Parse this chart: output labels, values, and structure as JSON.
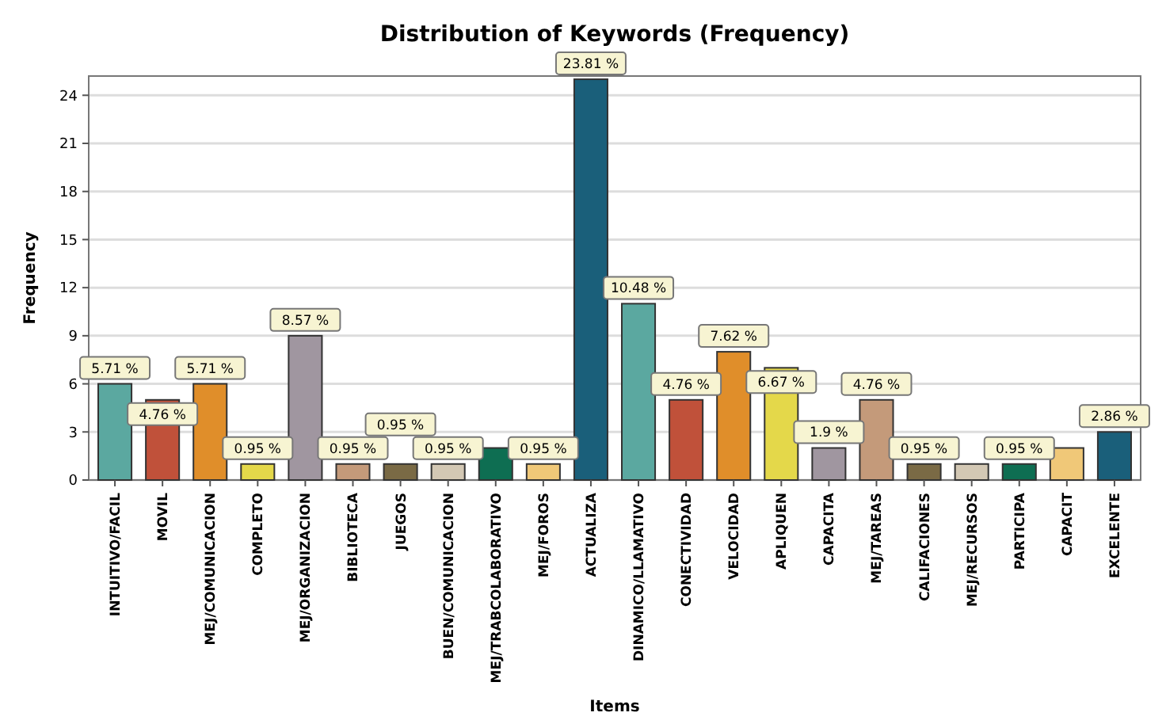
{
  "chart_data": {
    "type": "bar",
    "title": "Distribution of Keywords (Frequency)",
    "xlabel": "Items",
    "ylabel": "Frequency",
    "categories": [
      "INTUITIVO/FACIL",
      "MOVIL",
      "MEJ/COMUNICACION",
      "COMPLETO",
      "MEJ/ORGANIZACION",
      "BIBLIOTECA",
      "JUEGOS",
      "BUEN/COMUNICACION",
      "MEJ/TRABCOLABORATIVO",
      "MEJ/FOROS",
      "ACTUALIZA",
      "DINAMICO/LLAMATIVO",
      "CONECTIVIDAD",
      "VELOCIDAD",
      "APLIQUEN",
      "CAPACITA",
      "MEJ/TAREAS",
      "CALIFACIONES",
      "MEJ/RECURSOS",
      "PARTICIPA",
      "CAPACIT",
      "EXCELENTE"
    ],
    "values": [
      6,
      5,
      6,
      1,
      9,
      1,
      1,
      1,
      2,
      1,
      25,
      11,
      5,
      8,
      7,
      2,
      5,
      1,
      1,
      1,
      2,
      3
    ],
    "colors": [
      "#5ba8a0",
      "#c0513a",
      "#e08e2a",
      "#e4d84a",
      "#a096a0",
      "#c49a7a",
      "#7a6a45",
      "#d3c8b4",
      "#0e6e52",
      "#f0c878",
      "#1a5f7a",
      "#5ba8a0",
      "#c0513a",
      "#e08e2a",
      "#e4d84a",
      "#a096a0",
      "#c49a7a",
      "#7a6a45",
      "#d3c8b4",
      "#0e6e52",
      "#f0c878",
      "#1a5f7a"
    ],
    "annotations": [
      {
        "text": "5.71 %",
        "x": "INTUITIVO/FACIL",
        "y": 6
      },
      {
        "text": "4.76 %",
        "x": "MOVIL",
        "y": 5
      },
      {
        "text": "5.71 %",
        "x": "MEJ/COMUNICACION",
        "y": 6
      },
      {
        "text": "0.95 %",
        "x": "COMPLETO",
        "y": 1
      },
      {
        "text": "8.57 %",
        "x": "MEJ/ORGANIZACION",
        "y": 9
      },
      {
        "text": "0.95 %",
        "x": "BIBLIOTECA",
        "y": 1
      },
      {
        "text": "0.95 %",
        "x": "JUEGOS",
        "y": 1
      },
      {
        "text": "0.95 %",
        "x": "BUEN/COMUNICACION",
        "y": 1
      },
      {
        "text": "0.95 %",
        "x": "MEJ/FOROS",
        "y": 1
      },
      {
        "text": "23.81 %",
        "x": "ACTUALIZA",
        "y": 25
      },
      {
        "text": "10.48 %",
        "x": "DINAMICO/LLAMATIVO",
        "y": 11
      },
      {
        "text": "4.76 %",
        "x": "CONECTIVIDAD",
        "y": 5
      },
      {
        "text": "7.62 %",
        "x": "VELOCIDAD",
        "y": 8
      },
      {
        "text": "6.67 %",
        "x": "APLIQUEN",
        "y": 7
      },
      {
        "text": "1.9 %",
        "x": "CAPACITA",
        "y": 2
      },
      {
        "text": "4.76 %",
        "x": "MEJ/TAREAS",
        "y": 5
      },
      {
        "text": "0.95 %",
        "x": "CALIFACIONES",
        "y": 1
      },
      {
        "text": "0.95 %",
        "x": "PARTICIPA",
        "y": 1
      },
      {
        "text": "2.86 %",
        "x": "EXCELENTE",
        "y": 3
      }
    ],
    "ylim": [
      0,
      25.2
    ],
    "yticks": [
      0,
      3,
      6,
      9,
      12,
      15,
      18,
      21,
      24
    ],
    "grid": "y"
  }
}
